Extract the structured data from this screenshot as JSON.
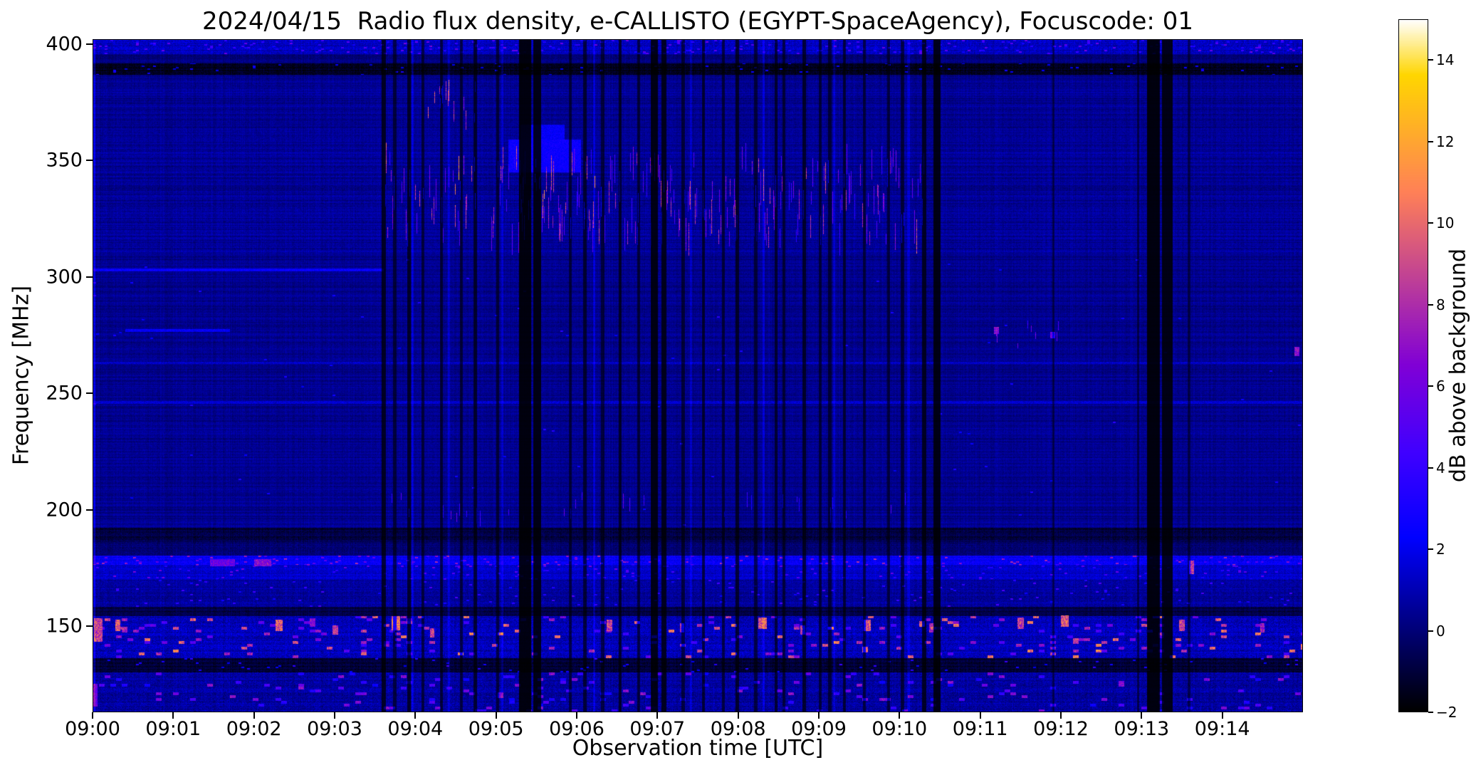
{
  "chart_data": {
    "type": "heatmap",
    "title": "2024/04/15  Radio flux density, e-CALLISTO (EGYPT-SpaceAgency), Focuscode: 01",
    "xlabel": "Observation time [UTC]",
    "ylabel": "Frequency [MHz]",
    "x_tick_labels": [
      "09:00",
      "09:01",
      "09:02",
      "09:03",
      "09:04",
      "09:05",
      "09:06",
      "09:07",
      "09:08",
      "09:09",
      "09:10",
      "09:11",
      "09:12",
      "09:13",
      "09:14"
    ],
    "x_range_minutes": [
      0,
      15
    ],
    "y_ticks_mhz": [
      400,
      350,
      300,
      250,
      200,
      150
    ],
    "y_range_mhz": [
      113,
      402
    ],
    "grid": false,
    "colorbar": {
      "label": "dB above background",
      "tick_values": [
        14,
        12,
        10,
        8,
        6,
        4,
        2,
        0,
        -2
      ],
      "tick_labels": [
        "14",
        "12",
        "10",
        "8",
        "6",
        "4",
        "2",
        "0",
        "−2"
      ],
      "range": [
        -2,
        15
      ],
      "colormap": "gnuplot2-like (black-blue-magenta-orange-yellow-white)",
      "colormap_stops": [
        {
          "u": 0.0,
          "color": "#000000"
        },
        {
          "u": 0.125,
          "color": "#000080"
        },
        {
          "u": 0.25,
          "color": "#0000ff"
        },
        {
          "u": 0.375,
          "color": "#4000ff"
        },
        {
          "u": 0.5,
          "color": "#8000d6"
        },
        {
          "u": 0.625,
          "color": "#bf4096"
        },
        {
          "u": 0.75,
          "color": "#ff8057"
        },
        {
          "u": 0.875,
          "color": "#ffbf17"
        },
        {
          "u": 0.92,
          "color": "#ffd600"
        },
        {
          "u": 1.0,
          "color": "#ffffff"
        }
      ]
    },
    "texture": {
      "seed": 1337,
      "row_striation": 0.8,
      "col_striation": 0.5,
      "bands": [
        {
          "f0": 396,
          "f1": 402,
          "base": 1.2,
          "noise": 1.3,
          "sparkle": 0.06,
          "sv": [
            2.5,
            6
          ]
        },
        {
          "f0": 392,
          "f1": 396,
          "base": 0.2,
          "noise": 0.8
        },
        {
          "f0": 387,
          "f1": 392,
          "base": -1.4,
          "noise": 0.9,
          "sparkle": 0.02,
          "sv": [
            1.5,
            3
          ]
        },
        {
          "f0": 356,
          "f1": 387,
          "base": 0.45,
          "noise": 0.75
        },
        {
          "f0": 310,
          "f1": 356,
          "base": 0.5,
          "noise": 0.8
        },
        {
          "f0": 192,
          "f1": 310,
          "base": 0.35,
          "noise": 0.7,
          "sparkle": 0.001,
          "sv": [
            2,
            3.5
          ]
        },
        {
          "f0": 186,
          "f1": 192,
          "base": -0.9,
          "noise": 0.9
        },
        {
          "f0": 180,
          "f1": 186,
          "base": -0.2,
          "noise": 0.9
        },
        {
          "f0": 176,
          "f1": 180,
          "base": 2.2,
          "noise": 1.4,
          "sparkle": 0.05,
          "sv": [
            4,
            8
          ]
        },
        {
          "f0": 170,
          "f1": 176,
          "base": 1.4,
          "noise": 1.1,
          "sparkle": 0.03,
          "sv": [
            3,
            6
          ]
        },
        {
          "f0": 158,
          "f1": 170,
          "base": 0.7,
          "noise": 1.1,
          "sparkle": 0.02,
          "sv": [
            2.5,
            5
          ]
        },
        {
          "f0": 154,
          "f1": 158,
          "base": -0.8,
          "noise": 0.8
        },
        {
          "f0": 136,
          "f1": 154,
          "base": 1.1,
          "noise": 1.6,
          "sparkle": 0.08,
          "sv": [
            4,
            11
          ],
          "bs": [
            3,
            2
          ]
        },
        {
          "f0": 130,
          "f1": 136,
          "base": -1.1,
          "noise": 0.9,
          "sparkle": 0.02,
          "sv": [
            2,
            4
          ]
        },
        {
          "f0": 113,
          "f1": 130,
          "base": 0.7,
          "noise": 1.4,
          "sparkle": 0.05,
          "sv": [
            2.5,
            7
          ],
          "bs": [
            3,
            2
          ]
        }
      ],
      "dark_stripes": [
        {
          "t0": 3.58,
          "t1": 3.62,
          "s": 0.75
        },
        {
          "t0": 3.72,
          "t1": 3.75,
          "s": 0.6
        },
        {
          "t0": 3.9,
          "t1": 3.93,
          "s": 0.7
        },
        {
          "t0": 4.07,
          "t1": 4.1,
          "s": 0.6
        },
        {
          "t0": 4.3,
          "t1": 4.33,
          "s": 0.65
        },
        {
          "t0": 4.55,
          "t1": 4.58,
          "s": 0.6
        },
        {
          "t0": 4.72,
          "t1": 4.75,
          "s": 0.7
        },
        {
          "t0": 5.0,
          "t1": 5.03,
          "s": 0.6
        },
        {
          "t0": 5.28,
          "t1": 5.42,
          "s": 0.9
        },
        {
          "t0": 5.46,
          "t1": 5.55,
          "s": 0.85
        },
        {
          "t0": 5.9,
          "t1": 5.93,
          "s": 0.6
        },
        {
          "t0": 6.08,
          "t1": 6.11,
          "s": 0.65
        },
        {
          "t0": 6.3,
          "t1": 6.33,
          "s": 0.6
        },
        {
          "t0": 6.52,
          "t1": 6.55,
          "s": 0.7
        },
        {
          "t0": 6.75,
          "t1": 6.78,
          "s": 0.6
        },
        {
          "t0": 6.92,
          "t1": 7.0,
          "s": 0.85
        },
        {
          "t0": 7.05,
          "t1": 7.1,
          "s": 0.8
        },
        {
          "t0": 7.3,
          "t1": 7.33,
          "s": 0.6
        },
        {
          "t0": 7.55,
          "t1": 7.58,
          "s": 0.65
        },
        {
          "t0": 7.8,
          "t1": 7.83,
          "s": 0.6
        },
        {
          "t0": 7.97,
          "t1": 8.0,
          "s": 0.7
        },
        {
          "t0": 8.2,
          "t1": 8.23,
          "s": 0.6
        },
        {
          "t0": 8.45,
          "t1": 8.48,
          "s": 0.65
        },
        {
          "t0": 8.55,
          "t1": 8.58,
          "s": 0.6
        },
        {
          "t0": 8.8,
          "t1": 8.83,
          "s": 0.7
        },
        {
          "t0": 9.0,
          "t1": 9.03,
          "s": 0.6
        },
        {
          "t0": 9.12,
          "t1": 9.15,
          "s": 0.6
        },
        {
          "t0": 9.3,
          "t1": 9.33,
          "s": 0.65
        },
        {
          "t0": 9.55,
          "t1": 9.58,
          "s": 0.6
        },
        {
          "t0": 9.85,
          "t1": 9.88,
          "s": 0.6
        },
        {
          "t0": 10.02,
          "t1": 10.05,
          "s": 0.6
        },
        {
          "t0": 10.28,
          "t1": 10.33,
          "s": 0.75
        },
        {
          "t0": 10.42,
          "t1": 10.5,
          "s": 0.85
        },
        {
          "t0": 11.9,
          "t1": 11.92,
          "s": 0.5
        },
        {
          "t0": 12.95,
          "t1": 12.97,
          "s": 0.5
        },
        {
          "t0": 13.07,
          "t1": 13.22,
          "s": 0.9
        },
        {
          "t0": 13.26,
          "t1": 13.38,
          "s": 0.85
        },
        {
          "t0": 13.58,
          "t1": 13.6,
          "s": 0.5
        }
      ],
      "bright_stripes": [
        {
          "t0": 0.0,
          "t1": 0.018,
          "s": 1.4
        },
        {
          "t0": 3.95,
          "t1": 3.97,
          "s": 1.2
        },
        {
          "t0": 4.4,
          "t1": 4.42,
          "s": 1.0
        },
        {
          "t0": 5.06,
          "t1": 5.08,
          "s": 1.0
        },
        {
          "t0": 6.2,
          "t1": 6.22,
          "s": 1.2
        },
        {
          "t0": 7.4,
          "t1": 7.42,
          "s": 0.9
        },
        {
          "t0": 8.3,
          "t1": 8.32,
          "s": 1.0
        },
        {
          "t0": 9.18,
          "t1": 9.2,
          "s": 0.9
        },
        {
          "t0": 10.1,
          "t1": 10.12,
          "s": 0.9
        }
      ],
      "streak_regions": [
        {
          "t0": 3.6,
          "t1": 10.3,
          "f0": 316,
          "f1": 352,
          "density": 0.3,
          "v0": 3.5,
          "v1": 9,
          "len": 6
        },
        {
          "t0": 4.0,
          "t1": 6.8,
          "f0": 330,
          "f1": 350,
          "density": 0.04,
          "v0": 9,
          "v1": 12,
          "len": 5
        },
        {
          "t0": 4.0,
          "t1": 4.8,
          "f0": 366,
          "f1": 384,
          "density": 0.12,
          "v0": 5,
          "v1": 10,
          "len": 4
        },
        {
          "t0": 3.7,
          "t1": 10.2,
          "f0": 196,
          "f1": 206,
          "density": 0.05,
          "v0": 3,
          "v1": 6,
          "len": 3
        },
        {
          "t0": 10.8,
          "t1": 12.3,
          "f0": 270,
          "f1": 280,
          "density": 0.04,
          "v0": 4,
          "v1": 7,
          "len": 2
        }
      ],
      "hsegments": [
        {
          "f": 303,
          "t0": 0.0,
          "t1": 3.6,
          "v": 2.4,
          "th": 1.2
        },
        {
          "f": 277,
          "t0": 0.4,
          "t1": 1.7,
          "v": 2.2,
          "th": 1.2
        },
        {
          "f": 352,
          "t0": 5.15,
          "t1": 6.05,
          "v": 2.6,
          "th": 14
        },
        {
          "f": 361,
          "t0": 5.3,
          "t1": 5.85,
          "v": 2.3,
          "th": 9
        },
        {
          "f": 246,
          "t0": 0.0,
          "t1": 15,
          "v": 1.5,
          "th": 1.0
        },
        {
          "f": 263,
          "t0": 0.0,
          "t1": 15,
          "v": 1.3,
          "th": 1.0
        }
      ],
      "blobs": [
        {
          "t": 0.06,
          "f": 148,
          "w": 0.1,
          "h": 10,
          "v": 9
        },
        {
          "t": 0.02,
          "f": 120,
          "w": 0.04,
          "h": 10,
          "v": 6
        },
        {
          "t": 0.3,
          "f": 150,
          "w": 0.06,
          "h": 5,
          "v": 10
        },
        {
          "t": 2.3,
          "f": 150,
          "w": 0.08,
          "h": 5,
          "v": 10
        },
        {
          "t": 3.0,
          "f": 148,
          "w": 0.06,
          "h": 4,
          "v": 9
        },
        {
          "t": 3.75,
          "f": 151,
          "w": 0.1,
          "h": 6,
          "v": 11
        },
        {
          "t": 4.2,
          "f": 147,
          "w": 0.05,
          "h": 4,
          "v": 9
        },
        {
          "t": 6.4,
          "f": 150,
          "w": 0.07,
          "h": 5,
          "v": 9
        },
        {
          "t": 7.3,
          "f": 149,
          "w": 0.05,
          "h": 4,
          "v": 8
        },
        {
          "t": 8.3,
          "f": 151,
          "w": 0.09,
          "h": 5,
          "v": 10
        },
        {
          "t": 8.8,
          "f": 148,
          "w": 0.05,
          "h": 4,
          "v": 9
        },
        {
          "t": 9.6,
          "f": 150,
          "w": 0.08,
          "h": 5,
          "v": 10
        },
        {
          "t": 10.4,
          "f": 149,
          "w": 0.05,
          "h": 4,
          "v": 8
        },
        {
          "t": 11.5,
          "f": 151,
          "w": 0.07,
          "h": 5,
          "v": 9
        },
        {
          "t": 12.05,
          "f": 152,
          "w": 0.09,
          "h": 5,
          "v": 10
        },
        {
          "t": 13.5,
          "f": 150,
          "w": 0.06,
          "h": 5,
          "v": 9
        },
        {
          "t": 14.5,
          "f": 149,
          "w": 0.05,
          "h": 4,
          "v": 8
        },
        {
          "t": 11.2,
          "f": 277,
          "w": 0.05,
          "h": 3,
          "v": 7
        },
        {
          "t": 11.9,
          "f": 275,
          "w": 0.06,
          "h": 3,
          "v": 6
        },
        {
          "t": 14.93,
          "f": 268,
          "w": 0.05,
          "h": 4,
          "v": 7
        },
        {
          "t": 13.62,
          "f": 175,
          "w": 0.05,
          "h": 6,
          "v": 9
        },
        {
          "t": 1.6,
          "f": 177,
          "w": 0.3,
          "h": 3,
          "v": 6
        },
        {
          "t": 2.1,
          "f": 177,
          "w": 0.2,
          "h": 3,
          "v": 7
        }
      ]
    }
  }
}
